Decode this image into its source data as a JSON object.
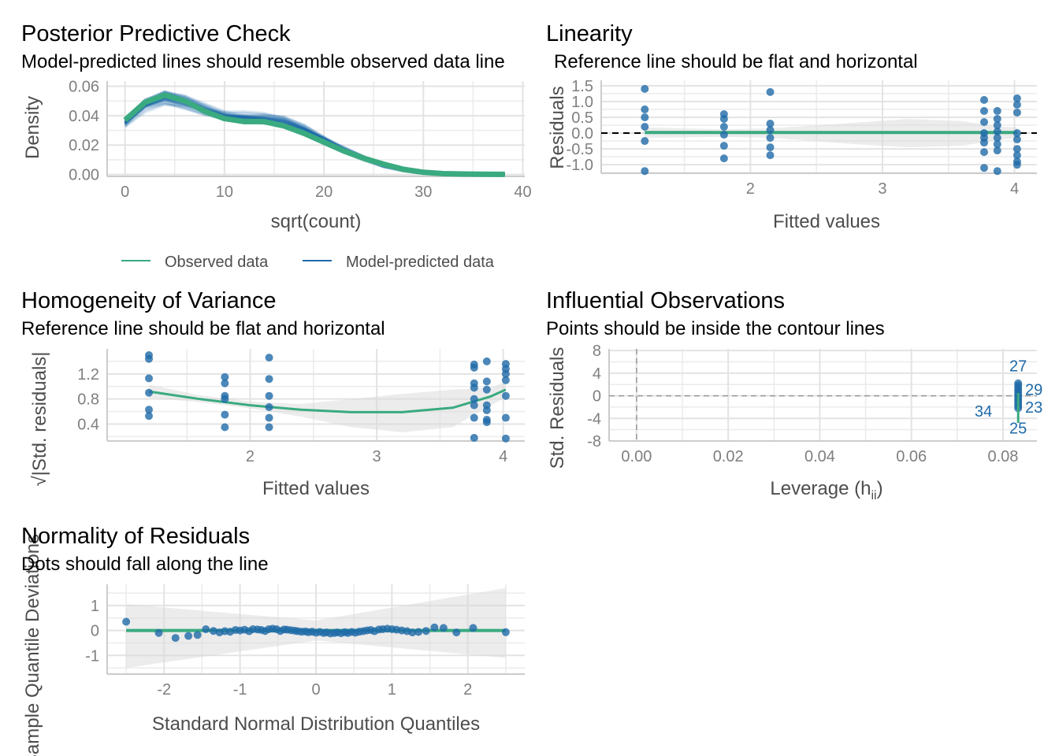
{
  "chart_data": [
    {
      "id": "ppc",
      "type": "line",
      "title": "Posterior Predictive Check",
      "subtitle": "Model-predicted lines should resemble observed data line",
      "xlabel": "sqrt(count)",
      "ylabel": "Density",
      "xlim": [
        -1.8,
        40.2
      ],
      "ylim": [
        -0.0013,
        0.0635
      ],
      "xticks": [
        0,
        10,
        20,
        30,
        40
      ],
      "yticks": [
        0.0,
        0.02,
        0.04,
        0.06
      ],
      "ytick_labels": [
        "0.00",
        "0.02",
        "0.04",
        "0.06"
      ],
      "grid": true,
      "legend": {
        "position": "bottom",
        "entries": [
          {
            "label": "Observed data",
            "color": "#3aaa80"
          },
          {
            "label": "Model-predicted data",
            "color": "#1f6aa8"
          }
        ]
      },
      "series": [
        {
          "name": "Observed data",
          "color": "#3aaa80",
          "x": [
            0,
            2,
            4,
            6,
            8,
            10,
            12,
            14,
            16,
            18,
            20,
            22,
            24,
            26,
            28,
            30,
            32,
            34,
            36,
            38.2
          ],
          "y": [
            0.037,
            0.049,
            0.054,
            0.05,
            0.043,
            0.038,
            0.036,
            0.036,
            0.033,
            0.028,
            0.022,
            0.016,
            0.011,
            0.007,
            0.0035,
            0.0015,
            0.0006,
            0.0003,
            0.0002,
            0.0001
          ]
        },
        {
          "name": "Model-predicted data",
          "color": "#1f6aa8",
          "x": [
            0,
            2,
            4,
            6,
            8,
            10,
            12,
            14,
            16,
            18,
            20,
            22,
            24,
            26,
            28,
            30,
            32,
            34,
            36,
            38.2
          ],
          "y": [
            0.035,
            0.047,
            0.052,
            0.049,
            0.044,
            0.04,
            0.039,
            0.038,
            0.036,
            0.031,
            0.024,
            0.017,
            0.011,
            0.006,
            0.003,
            0.0012,
            0.0005,
            0.0002,
            0.0001,
            0.0001
          ]
        }
      ]
    },
    {
      "id": "linearity",
      "type": "scatter",
      "title": "Linearity",
      "subtitle": "Reference line should be flat and horizontal",
      "xlabel": "Fitted values",
      "ylabel": "Residuals",
      "xlim": [
        0.87,
        4.17
      ],
      "ylim": [
        -1.27,
        1.67
      ],
      "xticks": [
        2,
        3,
        4
      ],
      "yticks": [
        1.5,
        1.0,
        0.5,
        0.0,
        -0.5,
        -1.0
      ],
      "ytick_labels": [
        "1.5",
        "1.0",
        "0.5",
        "0.0",
        "-0.5",
        "-1.0"
      ],
      "grid": true,
      "reference_line": 0,
      "smooth_color": "#3aaa80",
      "point_color": "#1f6aa8",
      "points": [
        [
          1.2,
          1.4
        ],
        [
          1.2,
          0.75
        ],
        [
          1.2,
          0.5
        ],
        [
          1.2,
          0.2
        ],
        [
          1.2,
          -0.25
        ],
        [
          1.2,
          -1.2
        ],
        [
          1.8,
          0.6
        ],
        [
          1.8,
          0.45
        ],
        [
          1.8,
          0.2
        ],
        [
          1.8,
          -0.05
        ],
        [
          1.8,
          -0.4
        ],
        [
          1.8,
          -0.8
        ],
        [
          2.15,
          1.3
        ],
        [
          2.15,
          0.3
        ],
        [
          2.15,
          0.1
        ],
        [
          2.15,
          -0.15
        ],
        [
          2.15,
          -0.45
        ],
        [
          2.15,
          -0.7
        ],
        [
          3.77,
          1.05
        ],
        [
          3.77,
          0.7
        ],
        [
          3.77,
          0.35
        ],
        [
          3.77,
          0.0
        ],
        [
          3.77,
          -0.15
        ],
        [
          3.77,
          -0.3
        ],
        [
          3.77,
          -0.6
        ],
        [
          3.77,
          -1.1
        ],
        [
          3.87,
          0.7
        ],
        [
          3.87,
          0.45
        ],
        [
          3.87,
          0.25
        ],
        [
          3.87,
          0.05
        ],
        [
          3.87,
          -0.15
        ],
        [
          3.87,
          -0.35
        ],
        [
          3.87,
          -0.55
        ],
        [
          3.87,
          -1.2
        ],
        [
          4.02,
          1.1
        ],
        [
          4.02,
          0.9
        ],
        [
          4.02,
          0.65
        ],
        [
          4.02,
          0.0
        ],
        [
          4.02,
          -0.2
        ],
        [
          4.02,
          -0.5
        ],
        [
          4.02,
          -0.7
        ],
        [
          4.02,
          -0.9
        ],
        [
          4.02,
          -1.0
        ]
      ],
      "smooth": {
        "x": [
          1.2,
          4.02
        ],
        "y": [
          0.02,
          0.02
        ]
      },
      "band": {
        "x": [
          1.2,
          1.8,
          2.15,
          2.8,
          3.2,
          3.6,
          3.9,
          4.02
        ],
        "lo": [
          -0.15,
          -0.12,
          -0.15,
          -0.35,
          -0.45,
          -0.4,
          -0.2,
          -0.15
        ],
        "hi": [
          0.18,
          0.12,
          0.15,
          0.33,
          0.45,
          0.38,
          0.2,
          0.18
        ]
      }
    },
    {
      "id": "homogeneity",
      "type": "scatter",
      "title": "Homogeneity of Variance",
      "subtitle": "Reference line should be flat and horizontal",
      "xlabel": "Fitted values",
      "ylabel": "√|Std. residuals|",
      "xlim": [
        0.87,
        4.17
      ],
      "ylim": [
        0.13,
        1.6
      ],
      "xticks": [
        2,
        3,
        4
      ],
      "yticks": [
        1.2,
        0.8,
        0.4
      ],
      "ytick_labels": [
        "1.2",
        "0.8",
        "0.4"
      ],
      "grid": true,
      "smooth_color": "#3aaa80",
      "point_color": "#1f6aa8",
      "points": [
        [
          1.2,
          1.5
        ],
        [
          1.2,
          1.44
        ],
        [
          1.2,
          1.13
        ],
        [
          1.2,
          0.9
        ],
        [
          1.2,
          0.63
        ],
        [
          1.2,
          0.53
        ],
        [
          1.8,
          1.15
        ],
        [
          1.8,
          1.05
        ],
        [
          1.8,
          0.85
        ],
        [
          1.8,
          0.8
        ],
        [
          1.8,
          0.55
        ],
        [
          1.8,
          0.35
        ],
        [
          2.15,
          1.46
        ],
        [
          2.15,
          1.12
        ],
        [
          2.15,
          0.85
        ],
        [
          2.15,
          0.67
        ],
        [
          2.15,
          0.5
        ],
        [
          2.15,
          0.35
        ],
        [
          3.77,
          1.35
        ],
        [
          3.77,
          1.3
        ],
        [
          3.77,
          1.05
        ],
        [
          3.77,
          0.98
        ],
        [
          3.77,
          0.8
        ],
        [
          3.77,
          0.7
        ],
        [
          3.77,
          0.5
        ],
        [
          3.77,
          0.18
        ],
        [
          3.87,
          1.4
        ],
        [
          3.87,
          1.08
        ],
        [
          3.87,
          0.95
        ],
        [
          3.87,
          0.7
        ],
        [
          3.87,
          0.62
        ],
        [
          3.87,
          0.47
        ],
        [
          3.87,
          0.43
        ],
        [
          4.02,
          1.36
        ],
        [
          4.02,
          1.28
        ],
        [
          4.02,
          1.2
        ],
        [
          4.02,
          1.1
        ],
        [
          4.02,
          0.85
        ],
        [
          4.02,
          0.5
        ],
        [
          4.02,
          0.17
        ]
      ],
      "smooth": {
        "x": [
          1.2,
          1.6,
          2.0,
          2.4,
          2.8,
          3.2,
          3.6,
          3.9,
          4.02
        ],
        "y": [
          0.92,
          0.8,
          0.7,
          0.63,
          0.59,
          0.59,
          0.66,
          0.84,
          0.95
        ]
      },
      "band": {
        "x": [
          1.2,
          1.6,
          2.0,
          2.4,
          2.8,
          3.2,
          3.6,
          3.9,
          4.02
        ],
        "lo": [
          0.82,
          0.75,
          0.65,
          0.52,
          0.35,
          0.27,
          0.35,
          0.7,
          0.82
        ],
        "hi": [
          1.03,
          0.86,
          0.76,
          0.72,
          0.8,
          0.88,
          0.95,
          0.98,
          1.08
        ]
      }
    },
    {
      "id": "influential",
      "type": "scatter",
      "title": "Influential Observations",
      "subtitle": "Points should be inside the contour lines",
      "xlabel": "Leverage (hii)",
      "ylabel": "Std. Residuals",
      "xlim": [
        -0.006,
        0.0874
      ],
      "ylim": [
        -8.0,
        8.3
      ],
      "xticks": [
        0.0,
        0.02,
        0.04,
        0.06,
        0.08
      ],
      "xtick_labels": [
        "0.00",
        "0.02",
        "0.04",
        "0.06",
        "0.08"
      ],
      "yticks": [
        8,
        4,
        0,
        -4,
        -8
      ],
      "ytick_labels": [
        "8",
        "4",
        "0",
        "-4",
        "-8"
      ],
      "grid": true,
      "reference_lines": {
        "h": 0,
        "v": 0
      },
      "point_color": "#1f6aa8",
      "smooth_color": "#3aaa80",
      "points_x": 0.0833,
      "points_y": [
        2.2,
        1.8,
        1.4,
        1.0,
        0.6,
        0.2,
        -0.2,
        -0.6,
        -1.0,
        -1.4,
        -1.8,
        -2.2
      ],
      "smooth": {
        "x": [
          0.0833,
          0.0833
        ],
        "y": [
          0.5,
          -4.8
        ]
      },
      "labels": [
        {
          "text": "27",
          "x": 0.0833,
          "y": 5.3
        },
        {
          "text": "29",
          "x": 0.0833,
          "y": 0.6
        },
        {
          "text": "23",
          "x": 0.0833,
          "y": -0.6
        },
        {
          "text": "34",
          "x": 0.0757,
          "y": -2.7
        },
        {
          "text": "25",
          "x": 0.0833,
          "y": -5.7
        }
      ]
    },
    {
      "id": "qq",
      "type": "scatter",
      "title": "Normality of Residuals",
      "subtitle": "Dots should fall along the line",
      "xlabel": "Standard Normal Distribution Quantiles",
      "ylabel": "Sample Quantile Deviations",
      "xlim": [
        -2.75,
        2.75
      ],
      "ylim": [
        -1.75,
        1.85
      ],
      "xticks": [
        -2,
        -1,
        0,
        1,
        2
      ],
      "yticks": [
        1,
        0,
        -1
      ],
      "ytick_labels": [
        "1",
        "0",
        "-1"
      ],
      "grid": true,
      "point_color": "#1f6aa8",
      "line_color": "#3aaa80",
      "line_y": 0,
      "band": {
        "x": [
          -2.5,
          0,
          2.5
        ],
        "lo": [
          -1.5,
          -0.4,
          -1.1
        ],
        "hi": [
          1.05,
          0.4,
          1.7
        ]
      },
      "points": [
        [
          -2.5,
          0.35
        ],
        [
          -2.07,
          -0.1
        ],
        [
          -1.85,
          -0.3
        ],
        [
          -1.68,
          -0.22
        ],
        [
          -1.56,
          -0.18
        ],
        [
          -1.45,
          0.05
        ],
        [
          -1.35,
          -0.02
        ],
        [
          -1.27,
          -0.08
        ],
        [
          -1.2,
          -0.03
        ],
        [
          -1.13,
          -0.05
        ],
        [
          -1.06,
          0.02
        ],
        [
          -1.0,
          0.0
        ],
        [
          -0.94,
          0.03
        ],
        [
          -0.88,
          -0.03
        ],
        [
          -0.83,
          0.05
        ],
        [
          -0.77,
          0.04
        ],
        [
          -0.72,
          0.02
        ],
        [
          -0.67,
          -0.02
        ],
        [
          -0.62,
          0.05
        ],
        [
          -0.57,
          0.07
        ],
        [
          -0.52,
          0.05
        ],
        [
          -0.47,
          -0.02
        ],
        [
          -0.42,
          0.04
        ],
        [
          -0.38,
          0.03
        ],
        [
          -0.33,
          0.01
        ],
        [
          -0.28,
          -0.01
        ],
        [
          -0.24,
          -0.03
        ],
        [
          -0.19,
          -0.05
        ],
        [
          -0.14,
          -0.04
        ],
        [
          -0.1,
          -0.07
        ],
        [
          -0.05,
          -0.05
        ],
        [
          0.0,
          -0.09
        ],
        [
          0.05,
          -0.06
        ],
        [
          0.1,
          -0.1
        ],
        [
          0.14,
          -0.08
        ],
        [
          0.19,
          -0.12
        ],
        [
          0.24,
          -0.1
        ],
        [
          0.28,
          -0.08
        ],
        [
          0.33,
          -0.11
        ],
        [
          0.38,
          -0.07
        ],
        [
          0.42,
          -0.1
        ],
        [
          0.47,
          -0.06
        ],
        [
          0.52,
          -0.09
        ],
        [
          0.57,
          -0.05
        ],
        [
          0.62,
          -0.03
        ],
        [
          0.67,
          0.0
        ],
        [
          0.72,
          0.02
        ],
        [
          0.77,
          -0.03
        ],
        [
          0.83,
          0.04
        ],
        [
          0.88,
          0.05
        ],
        [
          0.94,
          0.07
        ],
        [
          1.0,
          0.05
        ],
        [
          1.06,
          0.03
        ],
        [
          1.13,
          0.0
        ],
        [
          1.2,
          -0.03
        ],
        [
          1.27,
          -0.08
        ],
        [
          1.35,
          -0.06
        ],
        [
          1.45,
          -0.02
        ],
        [
          1.56,
          0.12
        ],
        [
          1.68,
          0.1
        ],
        [
          1.85,
          -0.08
        ],
        [
          2.07,
          0.1
        ],
        [
          2.5,
          -0.07
        ]
      ]
    }
  ]
}
